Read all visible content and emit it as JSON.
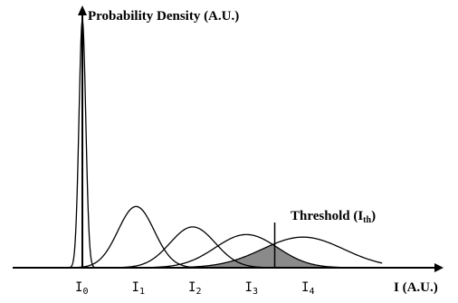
{
  "chart_data": {
    "type": "line",
    "title": "",
    "ylabel": "Probability Density (A.U.)",
    "xlabel": "I (A.U.)",
    "x_ticks": [
      {
        "label": "I",
        "sub": "0",
        "x": 0
      },
      {
        "label": "I",
        "sub": "1",
        "x": 1
      },
      {
        "label": "I",
        "sub": "2",
        "x": 2
      },
      {
        "label": "I",
        "sub": "3",
        "x": 3
      },
      {
        "label": "I",
        "sub": "4",
        "x": 4
      }
    ],
    "xlim": [
      -0.7,
      5.3
    ],
    "ylim": [
      0,
      1.0
    ],
    "series": [
      {
        "mean": 0.0,
        "sigma": 0.06,
        "peak": 0.97
      },
      {
        "mean": 0.95,
        "sigma": 0.32,
        "peak": 0.24
      },
      {
        "mean": 1.95,
        "sigma": 0.4,
        "peak": 0.16
      },
      {
        "mean": 2.9,
        "sigma": 0.55,
        "peak": 0.13
      },
      {
        "mean": 3.9,
        "sigma": 0.72,
        "peak": 0.12
      }
    ],
    "threshold": {
      "label": "Threshold (I",
      "label_sub": "th",
      "label_close": ")",
      "x": 3.4
    }
  }
}
